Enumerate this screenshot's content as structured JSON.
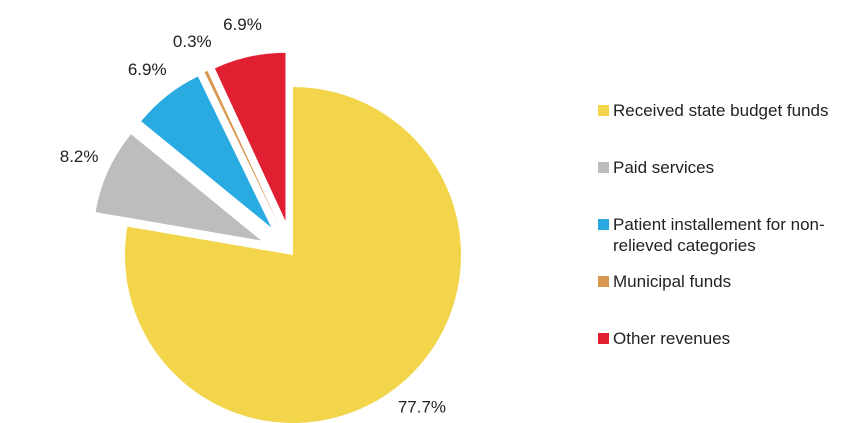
{
  "chart_data": {
    "type": "pie",
    "categories": [
      "Received state budget funds",
      "Paid services",
      "Patient installement for non-relieved categories",
      "Municipal funds",
      "Other revenues"
    ],
    "values": [
      77.7,
      8.2,
      6.9,
      0.3,
      6.9
    ],
    "value_labels": [
      "77.7%",
      "8.2%",
      "6.9%",
      "0.3%",
      "6.9%"
    ],
    "colors": [
      "#f2d54b",
      "#bdbdbd",
      "#29abe2",
      "#d9984f",
      "#e02030"
    ],
    "legend": "right"
  }
}
